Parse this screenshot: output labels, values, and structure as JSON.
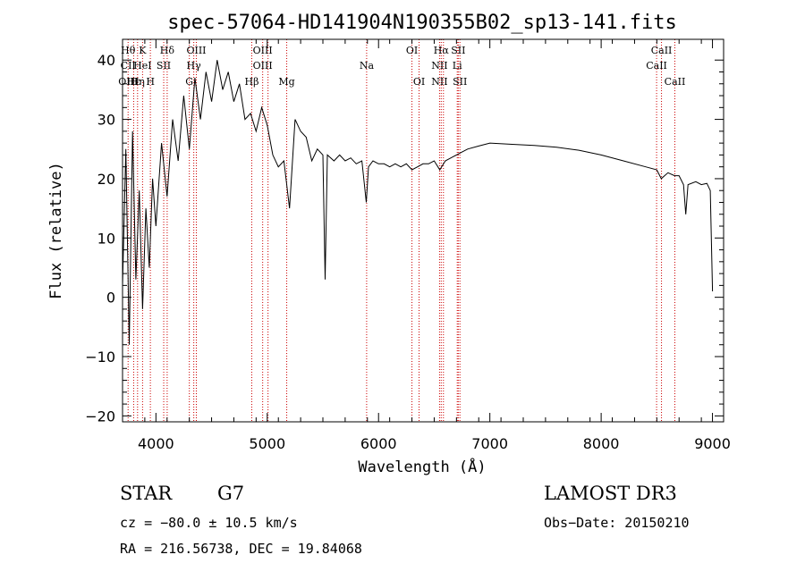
{
  "chart_data": {
    "type": "line",
    "title": "spec-57064-HD141904N190355B02_sp13-141.fits",
    "xlabel": "Wavelength (Å)",
    "ylabel": "Flux (relative)",
    "xlim": [
      3700,
      9100
    ],
    "ylim": [
      -21,
      43.5
    ],
    "xticks": [
      4000,
      5000,
      6000,
      7000,
      8000,
      9000
    ],
    "yticks": [
      -20,
      -10,
      0,
      10,
      20,
      30,
      40
    ],
    "grid": false,
    "series": [
      {
        "name": "flux",
        "points": [
          [
            3700,
            2
          ],
          [
            3730,
            25
          ],
          [
            3760,
            -8
          ],
          [
            3790,
            28
          ],
          [
            3820,
            3
          ],
          [
            3850,
            18
          ],
          [
            3880,
            -2
          ],
          [
            3910,
            15
          ],
          [
            3940,
            5
          ],
          [
            3970,
            20
          ],
          [
            4000,
            12
          ],
          [
            4050,
            26
          ],
          [
            4100,
            17
          ],
          [
            4150,
            30
          ],
          [
            4200,
            23
          ],
          [
            4250,
            34
          ],
          [
            4300,
            25
          ],
          [
            4350,
            37
          ],
          [
            4400,
            30
          ],
          [
            4450,
            38
          ],
          [
            4500,
            33
          ],
          [
            4550,
            40
          ],
          [
            4600,
            35
          ],
          [
            4650,
            38
          ],
          [
            4700,
            33
          ],
          [
            4750,
            36
          ],
          [
            4800,
            30
          ],
          [
            4850,
            31
          ],
          [
            4900,
            28
          ],
          [
            4950,
            32
          ],
          [
            5000,
            29
          ],
          [
            5050,
            24
          ],
          [
            5100,
            22
          ],
          [
            5150,
            23
          ],
          [
            5200,
            15
          ],
          [
            5250,
            30
          ],
          [
            5300,
            28
          ],
          [
            5350,
            27
          ],
          [
            5400,
            23
          ],
          [
            5450,
            25
          ],
          [
            5500,
            24
          ],
          [
            5520,
            3
          ],
          [
            5540,
            24
          ],
          [
            5600,
            23
          ],
          [
            5650,
            24
          ],
          [
            5700,
            23
          ],
          [
            5750,
            23.5
          ],
          [
            5800,
            22.5
          ],
          [
            5850,
            23
          ],
          [
            5890,
            16
          ],
          [
            5910,
            22
          ],
          [
            5950,
            23
          ],
          [
            6000,
            22.5
          ],
          [
            6050,
            22.5
          ],
          [
            6100,
            22
          ],
          [
            6150,
            22.5
          ],
          [
            6200,
            22
          ],
          [
            6250,
            22.5
          ],
          [
            6300,
            21.5
          ],
          [
            6350,
            22
          ],
          [
            6400,
            22.5
          ],
          [
            6450,
            22.5
          ],
          [
            6500,
            23
          ],
          [
            6550,
            21.5
          ],
          [
            6600,
            23
          ],
          [
            6650,
            23.5
          ],
          [
            6700,
            24
          ],
          [
            6750,
            24.5
          ],
          [
            6800,
            25
          ],
          [
            6900,
            25.5
          ],
          [
            7000,
            26
          ],
          [
            7200,
            25.8
          ],
          [
            7400,
            25.6
          ],
          [
            7600,
            25.3
          ],
          [
            7800,
            24.8
          ],
          [
            8000,
            24
          ],
          [
            8200,
            23
          ],
          [
            8400,
            22
          ],
          [
            8500,
            21.5
          ],
          [
            8540,
            20
          ],
          [
            8600,
            21
          ],
          [
            8660,
            20.5
          ],
          [
            8700,
            20.5
          ],
          [
            8740,
            19
          ],
          [
            8760,
            14
          ],
          [
            8780,
            19
          ],
          [
            8850,
            19.5
          ],
          [
            8900,
            19
          ],
          [
            8950,
            19.2
          ],
          [
            8980,
            18
          ],
          [
            9000,
            1
          ]
        ]
      }
    ],
    "line_markers": [
      {
        "wavelength": 3750,
        "rows": [
          {
            "label": "Hθ",
            "row": 1
          },
          {
            "label": "CII",
            "row": 2
          },
          {
            "label": "OIII",
            "row": 3
          }
        ]
      },
      {
        "wavelength": 3800,
        "rows": [
          {
            "label": "Hε",
            "row": 3
          }
        ]
      },
      {
        "wavelength": 3835,
        "rows": [
          {
            "label": "Hη",
            "row": 3
          }
        ]
      },
      {
        "wavelength": 3880,
        "rows": [
          {
            "label": "K",
            "row": 1
          },
          {
            "label": "HeI",
            "row": 2
          }
        ]
      },
      {
        "wavelength": 3950,
        "rows": [
          {
            "label": "H",
            "row": 3
          }
        ]
      },
      {
        "wavelength": 4070,
        "rows": [
          {
            "label": "SII",
            "row": 2
          }
        ]
      },
      {
        "wavelength": 4101,
        "rows": [
          {
            "label": "Hδ",
            "row": 1
          }
        ]
      },
      {
        "wavelength": 4300,
        "rows": [
          {
            "label": "G",
            "row": 3
          }
        ]
      },
      {
        "wavelength": 4340,
        "rows": [
          {
            "label": "Hγ",
            "row": 2
          }
        ]
      },
      {
        "wavelength": 4363,
        "rows": [
          {
            "label": "OIII",
            "row": 1
          }
        ]
      },
      {
        "wavelength": 4861,
        "rows": [
          {
            "label": "Hβ",
            "row": 3
          }
        ]
      },
      {
        "wavelength": 4959,
        "rows": [
          {
            "label": "OIII",
            "row": 1
          },
          {
            "label": "OIII",
            "row": 2
          }
        ]
      },
      {
        "wavelength": 5007,
        "rows": []
      },
      {
        "wavelength": 5175,
        "rows": [
          {
            "label": "Mg",
            "row": 3
          }
        ]
      },
      {
        "wavelength": 5893,
        "rows": [
          {
            "label": "Na",
            "row": 2
          }
        ]
      },
      {
        "wavelength": 6300,
        "rows": [
          {
            "label": "OI",
            "row": 1
          }
        ]
      },
      {
        "wavelength": 6364,
        "rows": [
          {
            "label": "OI",
            "row": 3
          }
        ]
      },
      {
        "wavelength": 6548,
        "rows": [
          {
            "label": "NII",
            "row": 2
          },
          {
            "label": "NII",
            "row": 3
          }
        ]
      },
      {
        "wavelength": 6563,
        "rows": [
          {
            "label": "Hα",
            "row": 1
          }
        ]
      },
      {
        "wavelength": 6583,
        "rows": []
      },
      {
        "wavelength": 6707,
        "rows": [
          {
            "label": "Li",
            "row": 2
          }
        ]
      },
      {
        "wavelength": 6716,
        "rows": [
          {
            "label": "SII",
            "row": 1
          }
        ]
      },
      {
        "wavelength": 6731,
        "rows": [
          {
            "label": "SII",
            "row": 3
          }
        ]
      },
      {
        "wavelength": 8498,
        "rows": [
          {
            "label": "CaII",
            "row": 2
          }
        ]
      },
      {
        "wavelength": 8542,
        "rows": [
          {
            "label": "CaII",
            "row": 1
          }
        ]
      },
      {
        "wavelength": 8662,
        "rows": [
          {
            "label": "CaII",
            "row": 3
          }
        ]
      }
    ]
  },
  "info": {
    "object_class": "STAR",
    "subclass": "G7",
    "survey": "LAMOST DR3",
    "redshift": "cz = −80.0 ± 10.5 km/s",
    "obs_date": "Obs−Date: 20150210",
    "coords": "RA = 216.56738, DEC =  19.84068"
  }
}
